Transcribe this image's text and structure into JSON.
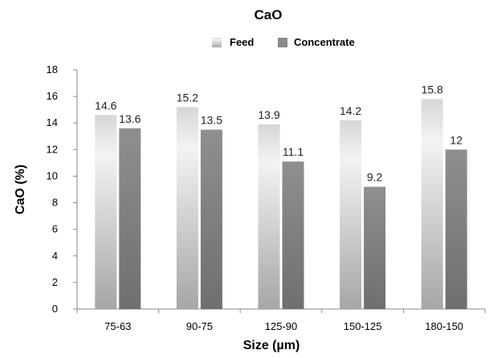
{
  "chart_data": {
    "type": "bar",
    "title": "CaO",
    "xlabel": "Size (µm)",
    "ylabel": "CaO (%)",
    "categories": [
      "75-63",
      "90-75",
      "125-90",
      "150-125",
      "180-150"
    ],
    "series": [
      {
        "name": "Feed",
        "values": [
          14.6,
          15.2,
          13.9,
          14.2,
          15.8
        ],
        "labels": [
          "14.6",
          "15.2",
          "13.9",
          "14.2",
          "15.8"
        ],
        "color": "#d4d4d4"
      },
      {
        "name": "Concentrate",
        "values": [
          13.6,
          13.5,
          11.1,
          9.2,
          12
        ],
        "labels": [
          "13.6",
          "13.5",
          "11.1",
          "9.2",
          "12"
        ],
        "color": "#8c8c8c"
      }
    ],
    "ylim": [
      0,
      18
    ],
    "yticks": [
      0,
      2,
      4,
      6,
      8,
      10,
      12,
      14,
      16,
      18
    ],
    "grid": false,
    "legend_position": "top-center"
  }
}
